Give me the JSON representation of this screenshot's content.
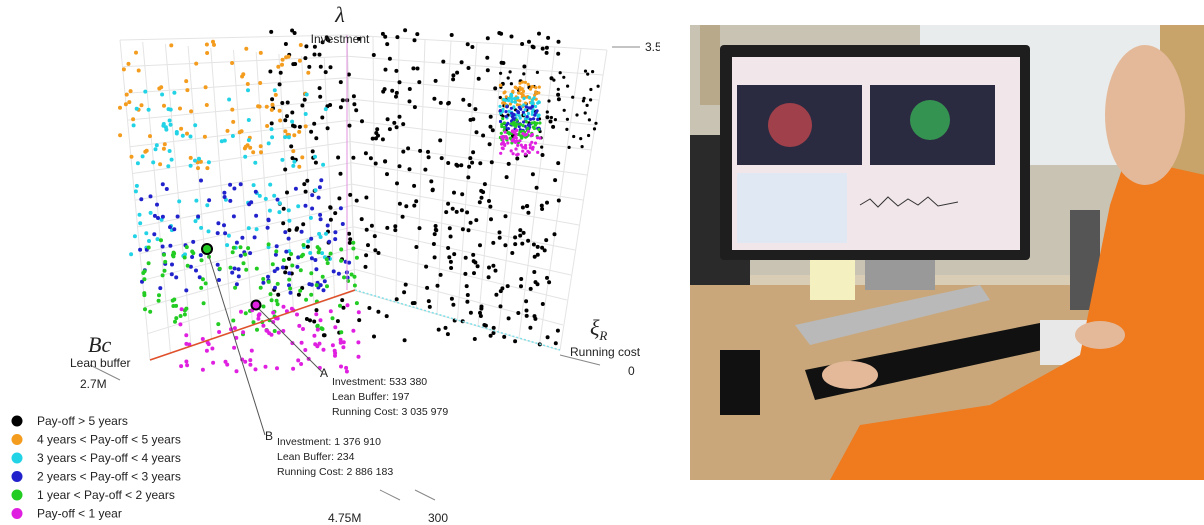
{
  "figure": {
    "axes": {
      "investment": {
        "symbol": "λ",
        "label": "Investment",
        "end_label": "3.5"
      },
      "lean_buffer": {
        "symbol": "Bc",
        "label": "Lean buffer",
        "end_label": "2.7M"
      },
      "running_cost": {
        "symbol": "ξ",
        "symbol_sub": "R",
        "label": "Running cost",
        "end_label": "0"
      },
      "bottom": {
        "left_label": "4.75M",
        "right_label": "300"
      }
    },
    "annotations": [
      {
        "letter": "A",
        "lines": [
          "Investment: 533 380",
          "Lean Buffer: 197",
          "Running Cost: 3 035 979"
        ]
      },
      {
        "letter": "B",
        "lines": [
          "Investment: 1 376 910",
          "Lean Buffer: 234",
          "Running Cost: 2 886 183"
        ]
      }
    ],
    "legend": [
      {
        "label": "Pay-off > 5 years",
        "color": "#000000"
      },
      {
        "label": "4 years < Pay-off < 5 years",
        "color": "#f39c1e"
      },
      {
        "label": "3 years < Pay-off < 4 years",
        "color": "#22d3e6"
      },
      {
        "label": "2 years < Pay-off < 3 years",
        "color": "#2222cc"
      },
      {
        "label": "1 year < Pay-off < 2 years",
        "color": "#22cc22"
      },
      {
        "label": "Pay-off < 1 year",
        "color": "#e020e0"
      }
    ]
  }
}
